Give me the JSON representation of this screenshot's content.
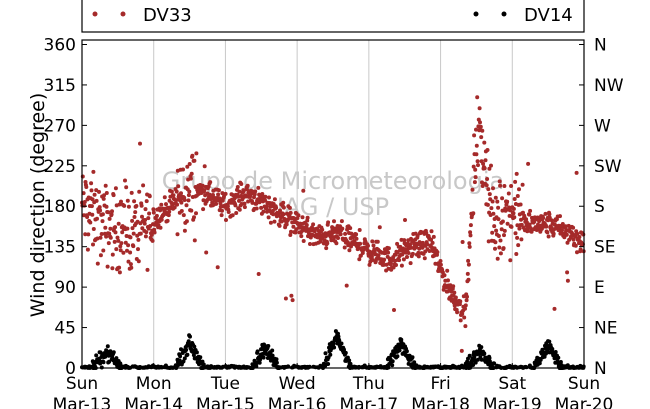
{
  "chart_data": {
    "type": "scatter",
    "title": "",
    "ylabel": "Wind direction (degree)",
    "xlabel": "",
    "ylim": [
      0,
      365
    ],
    "xlim": [
      0,
      7
    ],
    "y_ticks": [
      0,
      45,
      90,
      135,
      180,
      225,
      270,
      315,
      360
    ],
    "y_tick_labels": [
      "0",
      "45",
      "90",
      "135",
      "180",
      "225",
      "270",
      "315",
      "360"
    ],
    "x_ticks": [
      0,
      1,
      2,
      3,
      4,
      5,
      6,
      7
    ],
    "x_tick_labels": [
      [
        "Sun",
        "Mar-13"
      ],
      [
        "Mon",
        "Mar-14"
      ],
      [
        "Tue",
        "Mar-15"
      ],
      [
        "Wed",
        "Mar-16"
      ],
      [
        "Thu",
        "Mar-17"
      ],
      [
        "Fri",
        "Mar-18"
      ],
      [
        "Sat",
        "Mar-19"
      ],
      [
        "Sun",
        "Mar-20"
      ]
    ],
    "right_axis": {
      "ticks": [
        0,
        45,
        90,
        135,
        180,
        225,
        270,
        315,
        360
      ],
      "labels": [
        "N",
        "NE",
        "E",
        "SE",
        "S",
        "SW",
        "W",
        "NW",
        "N"
      ]
    },
    "grid": "vertical",
    "legend_position": "top",
    "watermark": [
      "Grupo de Micrometeorologia",
      "IAG / USP"
    ],
    "series": [
      {
        "name": "DV33",
        "color": "#a52a2a",
        "trend_x": [
          0,
          0.3,
          0.6,
          1.0,
          1.3,
          1.6,
          2.0,
          2.3,
          2.6,
          3.0,
          3.3,
          3.6,
          4.0,
          4.3,
          4.6,
          4.85,
          5.1,
          5.35,
          5.5,
          5.6,
          5.75,
          5.9,
          6.2,
          6.5,
          6.8,
          7.0
        ],
        "trend_y": [
          180,
          160,
          150,
          165,
          185,
          200,
          180,
          195,
          180,
          160,
          145,
          150,
          130,
          120,
          135,
          140,
          90,
          60,
          260,
          240,
          150,
          180,
          160,
          160,
          150,
          140
        ]
      },
      {
        "name": "DV14",
        "color": "#000000",
        "trend_x": [
          0.25,
          0.45,
          1.45,
          1.5,
          1.6,
          2.4,
          2.55,
          2.7,
          3.45,
          3.55,
          3.65,
          4.4,
          4.5,
          4.6,
          5.45,
          5.55,
          6.4,
          6.5,
          6.6
        ],
        "trend_y": [
          5,
          25,
          5,
          25,
          35,
          5,
          25,
          30,
          10,
          45,
          30,
          5,
          30,
          25,
          5,
          25,
          5,
          30,
          25
        ]
      }
    ]
  }
}
